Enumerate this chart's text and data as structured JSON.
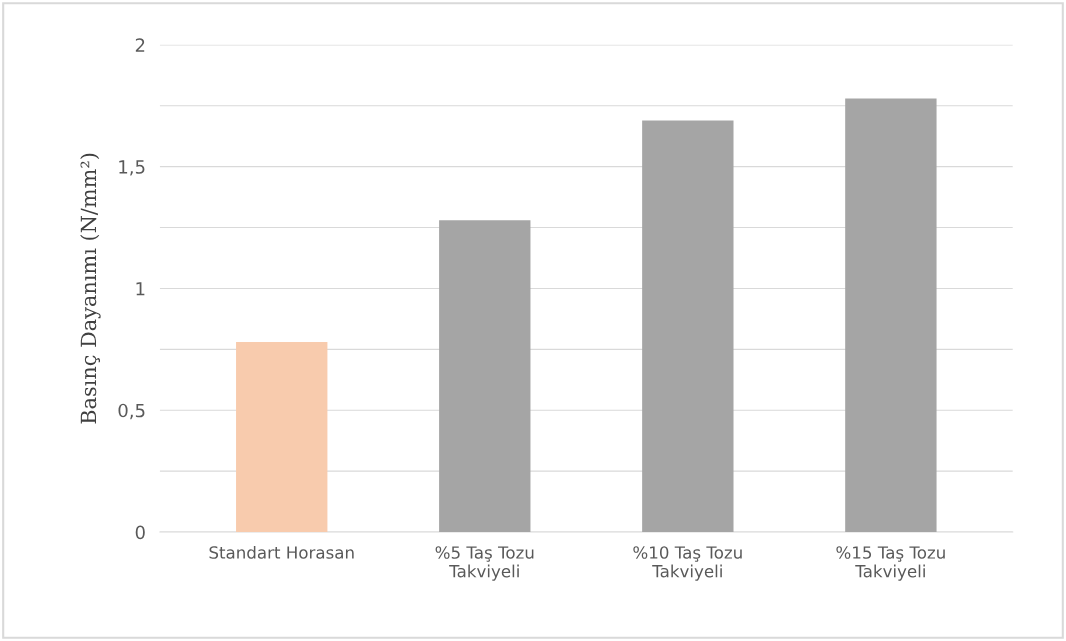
{
  "chart_data": {
    "type": "bar",
    "ylabel": "Basınç Dayanımı (N/mm²)",
    "categories": [
      "Standart Horasan",
      "%5 Taş Tozu\nTakviyeli",
      "%10 Taş Tozu\nTakviyeli",
      "%15 Taş Tozu\nTakviyeli"
    ],
    "values": [
      0.78,
      1.28,
      1.69,
      1.78
    ],
    "colors": [
      "#f8cbad",
      "#a5a5a5",
      "#a5a5a5",
      "#a5a5a5"
    ],
    "ylim": [
      0,
      2
    ],
    "yticks": [
      0,
      {
        "value": 0.25,
        "label": null
      },
      {
        "value": 0.5,
        "label": "0,5"
      },
      {
        "value": 0.75,
        "label": null
      },
      1,
      {
        "value": 1.25,
        "label": null
      },
      {
        "value": 1.5,
        "label": "1,5"
      },
      {
        "value": 1.75,
        "label": null
      },
      2
    ],
    "grid": "y"
  }
}
